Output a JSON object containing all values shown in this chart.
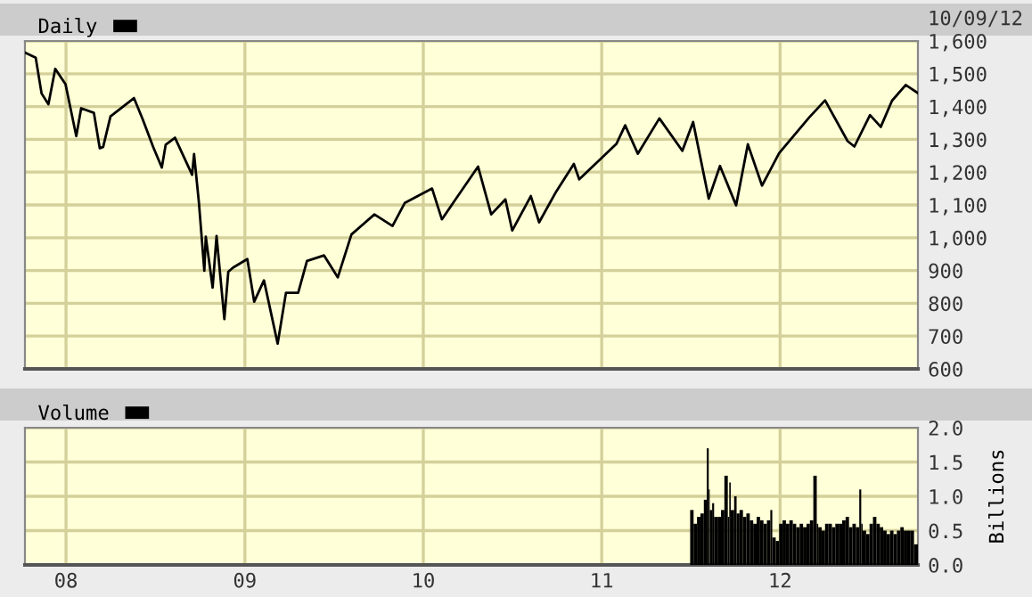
{
  "chart_data": [
    {
      "type": "line",
      "xlim": [
        "2007-10-09",
        "2012-10-09"
      ],
      "ylim": [
        600,
        1600
      ],
      "xticks": [
        {
          "value": "2008-01-01",
          "label": null
        },
        {
          "value": "2009-01-01",
          "label": null
        },
        {
          "value": "2010-01-01",
          "label": null
        },
        {
          "value": "2011-01-01",
          "label": null
        },
        {
          "value": "2012-01-01",
          "label": null
        }
      ],
      "yticks": [
        {
          "value": 600,
          "label": "600"
        },
        {
          "value": 700,
          "label": "700"
        },
        {
          "value": 800,
          "label": "800"
        },
        {
          "value": 900,
          "label": "900"
        },
        {
          "value": 1000,
          "label": "1,000"
        },
        {
          "value": 1100,
          "label": "1,100"
        },
        {
          "value": 1200,
          "label": "1,200"
        },
        {
          "value": 1300,
          "label": "1,300"
        },
        {
          "value": 1400,
          "label": "1,400"
        },
        {
          "value": 1500,
          "label": "1,500"
        },
        {
          "value": 1600,
          "label": "1,600"
        }
      ],
      "tick_labels": "y",
      "grid": true,
      "legend": "top left",
      "annotations": [
        "10/09/12"
      ],
      "series": [
        {
          "name": "Daily",
          "color": "#000000",
          "x": [
            "2007-10-09",
            "2007-10-31",
            "2007-11-12",
            "2007-11-26",
            "2007-12-10",
            "2007-12-31",
            "2008-01-22",
            "2008-02-01",
            "2008-02-27",
            "2008-03-10",
            "2008-03-17",
            "2008-04-01",
            "2008-05-19",
            "2008-06-06",
            "2008-06-27",
            "2008-07-15",
            "2008-07-23",
            "2008-08-11",
            "2008-09-15",
            "2008-09-19",
            "2008-09-29",
            "2008-10-10",
            "2008-10-13",
            "2008-10-27",
            "2008-11-04",
            "2008-11-20",
            "2008-11-28",
            "2008-12-08",
            "2009-01-06",
            "2009-01-20",
            "2009-02-09",
            "2009-03-09",
            "2009-03-26",
            "2009-04-20",
            "2009-05-08",
            "2009-06-12",
            "2009-07-10",
            "2009-08-07",
            "2009-09-23",
            "2009-10-30",
            "2009-11-24",
            "2010-01-19",
            "2010-02-08",
            "2010-04-23",
            "2010-05-20",
            "2010-06-18",
            "2010-07-02",
            "2010-08-09",
            "2010-08-26",
            "2010-09-30",
            "2010-11-05",
            "2010-11-16",
            "2011-01-31",
            "2011-02-18",
            "2011-03-16",
            "2011-04-29",
            "2011-06-15",
            "2011-07-07",
            "2011-08-08",
            "2011-08-31",
            "2011-10-03",
            "2011-10-27",
            "2011-11-25",
            "2011-12-30",
            "2012-02-29",
            "2012-04-02",
            "2012-05-18",
            "2012-06-01",
            "2012-07-03",
            "2012-07-25",
            "2012-08-17",
            "2012-09-14",
            "2012-10-09"
          ],
          "values": [
            1565,
            1549,
            1440,
            1407,
            1515,
            1468,
            1310,
            1395,
            1381,
            1273,
            1277,
            1370,
            1426,
            1361,
            1278,
            1214,
            1284,
            1305,
            1192,
            1255,
            1106,
            899,
            1003,
            848,
            1005,
            752,
            896,
            909,
            935,
            805,
            870,
            677,
            832,
            832,
            929,
            946,
            879,
            1010,
            1071,
            1036,
            1106,
            1150,
            1056,
            1217,
            1071,
            1117,
            1022,
            1127,
            1047,
            1141,
            1225,
            1178,
            1286,
            1343,
            1256,
            1364,
            1265,
            1353,
            1119,
            1219,
            1099,
            1285,
            1159,
            1258,
            1366,
            1419,
            1295,
            1278,
            1374,
            1338,
            1418,
            1466,
            1441
          ]
        }
      ]
    },
    {
      "type": "bar",
      "xlim": [
        "2007-10-09",
        "2012-10-09"
      ],
      "ylim": [
        0,
        2.0
      ],
      "xticks": [
        {
          "value": "2008-01-01",
          "label": "08"
        },
        {
          "value": "2009-01-01",
          "label": "09"
        },
        {
          "value": "2010-01-01",
          "label": "10"
        },
        {
          "value": "2011-01-01",
          "label": "11"
        },
        {
          "value": "2012-01-01",
          "label": "12"
        }
      ],
      "yticks": [
        {
          "value": 0,
          "label": "0.0"
        },
        {
          "value": 0.5,
          "label": "0.5"
        },
        {
          "value": 1.0,
          "label": "1.0"
        },
        {
          "value": 1.5,
          "label": "1.5"
        },
        {
          "value": 2.0,
          "label": "2.0"
        }
      ],
      "y2label": "Billions",
      "grid": true,
      "legend": "top left",
      "series": [
        {
          "name": "Volume",
          "color": "#000000",
          "x": [
            "2011-07-08",
            "2011-07-15",
            "2011-07-22",
            "2011-07-29",
            "2011-08-04",
            "2011-08-08",
            "2011-08-10",
            "2011-08-15",
            "2011-08-19",
            "2011-08-26",
            "2011-09-02",
            "2011-09-09",
            "2011-09-16",
            "2011-09-19",
            "2011-09-22",
            "2011-09-29",
            "2011-10-04",
            "2011-10-10",
            "2011-10-17",
            "2011-10-24",
            "2011-10-31",
            "2011-11-07",
            "2011-11-14",
            "2011-11-21",
            "2011-11-28",
            "2011-12-05",
            "2011-12-12",
            "2011-12-16",
            "2011-12-23",
            "2011-12-30",
            "2012-01-06",
            "2012-01-13",
            "2012-01-20",
            "2012-01-27",
            "2012-02-03",
            "2012-02-10",
            "2012-02-17",
            "2012-02-24",
            "2012-03-02",
            "2012-03-09",
            "2012-03-16",
            "2012-03-19",
            "2012-03-26",
            "2012-04-02",
            "2012-04-09",
            "2012-04-16",
            "2012-04-23",
            "2012-04-30",
            "2012-05-07",
            "2012-05-14",
            "2012-05-21",
            "2012-05-28",
            "2012-06-04",
            "2012-06-11",
            "2012-06-15",
            "2012-06-18",
            "2012-06-25",
            "2012-07-02",
            "2012-07-09",
            "2012-07-16",
            "2012-07-23",
            "2012-07-30",
            "2012-08-06",
            "2012-08-13",
            "2012-08-20",
            "2012-08-27",
            "2012-09-03",
            "2012-09-10",
            "2012-09-17",
            "2012-09-24",
            "2012-10-01",
            "2012-10-09"
          ],
          "values": [
            0.8,
            0.6,
            0.7,
            0.75,
            0.95,
            1.7,
            1.1,
            0.8,
            0.9,
            0.7,
            0.7,
            0.8,
            1.3,
            0.7,
            1.2,
            0.8,
            1.0,
            0.75,
            0.8,
            0.7,
            0.75,
            0.65,
            0.6,
            0.7,
            0.65,
            0.6,
            0.65,
            0.8,
            0.4,
            0.35,
            0.6,
            0.65,
            0.6,
            0.65,
            0.6,
            0.55,
            0.6,
            0.55,
            0.6,
            0.65,
            1.3,
            0.6,
            0.55,
            0.5,
            0.6,
            0.6,
            0.55,
            0.6,
            0.6,
            0.65,
            0.7,
            0.55,
            0.6,
            0.55,
            1.1,
            0.6,
            0.5,
            0.45,
            0.6,
            0.7,
            0.6,
            0.55,
            0.5,
            0.45,
            0.5,
            0.45,
            0.5,
            0.55,
            0.5,
            0.5,
            0.5,
            0.3
          ]
        }
      ]
    }
  ]
}
